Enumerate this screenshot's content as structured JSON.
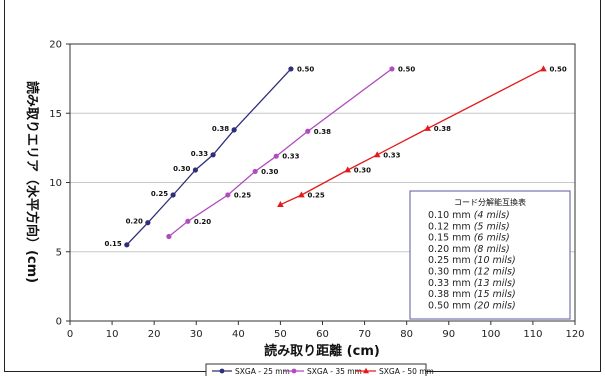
{
  "chart_data": {
    "type": "line",
    "xlabel": "読み取り距離 (cm)",
    "ylabel": "読み取りエリア（水平方向）(cm)",
    "xlim": [
      0,
      120
    ],
    "ylim": [
      0,
      20
    ],
    "x_ticks": [
      "0",
      "10",
      "20",
      "30",
      "40",
      "50",
      "60",
      "70",
      "80",
      "90",
      "100",
      "110",
      "120"
    ],
    "y_ticks": [
      "0",
      "5",
      "10",
      "15",
      "20"
    ],
    "grid": "horizontal",
    "legend_position": "bottom",
    "series": [
      {
        "name": "SXGA - 25 mm",
        "color": "#2e2e7a",
        "marker": "circle",
        "x": [
          13.5,
          18.5,
          24.5,
          29.8,
          34.0,
          39.0,
          52.5
        ],
        "y": [
          5.5,
          7.1,
          9.1,
          10.9,
          12.0,
          13.8,
          18.2
        ],
        "labels": [
          "0.15",
          "0.20",
          "0.25",
          "0.30",
          "0.33",
          "0.38",
          "0.50"
        ]
      },
      {
        "name": "SXGA - 35 mm",
        "color": "#b04cbf",
        "marker": "circle",
        "x": [
          23.5,
          28.0,
          37.5,
          44.0,
          49.0,
          56.5,
          76.5
        ],
        "y": [
          6.1,
          7.2,
          9.1,
          10.8,
          11.9,
          13.7,
          18.2
        ],
        "labels": [
          "",
          "0.20",
          "0.25",
          "0.30",
          "0.33",
          "0.38",
          "0.50"
        ]
      },
      {
        "name": "SXGA - 50 mm",
        "color": "#e41a1a",
        "marker": "triangle",
        "x": [
          50.0,
          55.0,
          66.0,
          73.0,
          85.0,
          112.5
        ],
        "y": [
          8.4,
          9.1,
          10.9,
          12.0,
          13.9,
          18.2
        ],
        "labels": [
          "",
          "0.25",
          "0.30",
          "0.33",
          "0.38",
          "0.50"
        ]
      }
    ],
    "resolution_table": {
      "title": "コード分解能互換表",
      "items": [
        {
          "mm": "0.10 mm",
          "mils": "(4 mils)"
        },
        {
          "mm": "0.12 mm",
          "mils": "(5 mils)"
        },
        {
          "mm": "0.15 mm",
          "mils": "(6 mils)"
        },
        {
          "mm": "0.20 mm",
          "mils": "(8 mils)"
        },
        {
          "mm": "0.25 mm",
          "mils": "(10 mils)"
        },
        {
          "mm": "0.30 mm",
          "mils": "(12 mils)"
        },
        {
          "mm": "0.33 mm",
          "mils": "(13 mils)"
        },
        {
          "mm": "0.38 mm",
          "mils": "(15 mils)"
        },
        {
          "mm": "0.50 mm",
          "mils": "(20 mils)"
        }
      ]
    }
  }
}
